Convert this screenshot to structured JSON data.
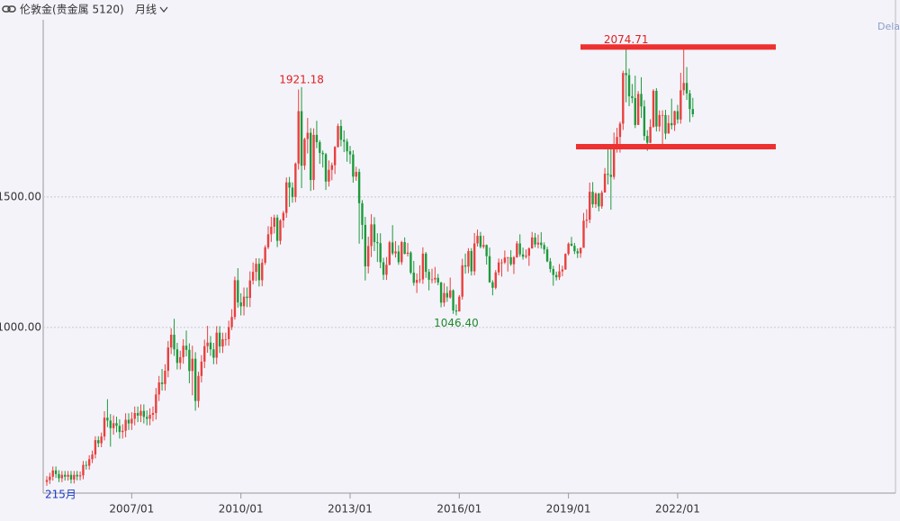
{
  "header": {
    "title": "伦敦金(贵金属 5120)",
    "period": "月线",
    "right_text": "Dela"
  },
  "chart_data": {
    "type": "candlestick",
    "footer_label": "215月",
    "up_color": "#e8403e",
    "down_color": "#1e9a3c",
    "x": [
      "2004/09",
      "2004/10",
      "2004/11",
      "2004/12",
      "2005/01",
      "2005/02",
      "2005/03",
      "2005/04",
      "2005/05",
      "2005/06",
      "2005/07",
      "2005/08",
      "2005/09",
      "2005/10",
      "2005/11",
      "2005/12",
      "2006/01",
      "2006/02",
      "2006/03",
      "2006/04",
      "2006/05",
      "2006/06",
      "2006/07",
      "2006/08",
      "2006/09",
      "2006/10",
      "2006/11",
      "2006/12",
      "2007/01",
      "2007/02",
      "2007/03",
      "2007/04",
      "2007/05",
      "2007/06",
      "2007/07",
      "2007/08",
      "2007/09",
      "2007/10",
      "2007/11",
      "2007/12",
      "2008/01",
      "2008/02",
      "2008/03",
      "2008/04",
      "2008/05",
      "2008/06",
      "2008/07",
      "2008/08",
      "2008/09",
      "2008/10",
      "2008/11",
      "2008/12",
      "2009/01",
      "2009/02",
      "2009/03",
      "2009/04",
      "2009/05",
      "2009/06",
      "2009/07",
      "2009/08",
      "2009/09",
      "2009/10",
      "2009/11",
      "2009/12",
      "2010/01",
      "2010/02",
      "2010/03",
      "2010/04",
      "2010/05",
      "2010/06",
      "2010/07",
      "2010/08",
      "2010/09",
      "2010/10",
      "2010/11",
      "2010/12",
      "2011/01",
      "2011/02",
      "2011/03",
      "2011/04",
      "2011/05",
      "2011/06",
      "2011/07",
      "2011/08",
      "2011/09",
      "2011/10",
      "2011/11",
      "2011/12",
      "2012/01",
      "2012/02",
      "2012/03",
      "2012/04",
      "2012/05",
      "2012/06",
      "2012/07",
      "2012/08",
      "2012/09",
      "2012/10",
      "2012/11",
      "2012/12",
      "2013/01",
      "2013/02",
      "2013/03",
      "2013/04",
      "2013/05",
      "2013/06",
      "2013/07",
      "2013/08",
      "2013/09",
      "2013/10",
      "2013/11",
      "2013/12",
      "2014/01",
      "2014/02",
      "2014/03",
      "2014/04",
      "2014/05",
      "2014/06",
      "2014/07",
      "2014/08",
      "2014/09",
      "2014/10",
      "2014/11",
      "2014/12",
      "2015/01",
      "2015/02",
      "2015/03",
      "2015/04",
      "2015/05",
      "2015/06",
      "2015/07",
      "2015/08",
      "2015/09",
      "2015/10",
      "2015/11",
      "2015/12",
      "2016/01",
      "2016/02",
      "2016/03",
      "2016/04",
      "2016/05",
      "2016/06",
      "2016/07",
      "2016/08",
      "2016/09",
      "2016/10",
      "2016/11",
      "2016/12",
      "2017/01",
      "2017/02",
      "2017/03",
      "2017/04",
      "2017/05",
      "2017/06",
      "2017/07",
      "2017/08",
      "2017/09",
      "2017/10",
      "2017/11",
      "2017/12",
      "2018/01",
      "2018/02",
      "2018/03",
      "2018/04",
      "2018/05",
      "2018/06",
      "2018/07",
      "2018/08",
      "2018/09",
      "2018/10",
      "2018/11",
      "2018/12",
      "2019/01",
      "2019/02",
      "2019/03",
      "2019/04",
      "2019/05",
      "2019/06",
      "2019/07",
      "2019/08",
      "2019/09",
      "2019/10",
      "2019/11",
      "2019/12",
      "2020/01",
      "2020/02",
      "2020/03",
      "2020/04",
      "2020/05",
      "2020/06",
      "2020/07",
      "2020/08",
      "2020/09",
      "2020/10",
      "2020/11",
      "2020/12",
      "2021/01",
      "2021/02",
      "2021/03",
      "2021/04",
      "2021/05",
      "2021/06",
      "2021/07",
      "2021/08",
      "2021/09",
      "2021/10",
      "2021/11",
      "2021/12",
      "2022/01",
      "2022/02",
      "2022/03",
      "2022/04",
      "2022/05",
      "2022/06"
    ],
    "open": [
      408,
      415,
      428,
      452,
      438,
      422,
      435,
      428,
      435,
      417,
      435,
      429,
      433,
      473,
      470,
      495,
      513,
      568,
      556,
      582,
      654,
      643,
      614,
      633,
      623,
      599,
      604,
      646,
      632,
      650,
      672,
      662,
      680,
      657,
      650,
      665,
      672,
      743,
      789,
      783,
      834,
      923,
      972,
      916,
      864,
      886,
      930,
      914,
      833,
      880,
      718,
      814,
      869,
      928,
      942,
      916,
      884,
      980,
      927,
      955,
      955,
      1001,
      1040,
      1181,
      1096,
      1081,
      1118,
      1113,
      1180,
      1213,
      1244,
      1181,
      1248,
      1307,
      1357,
      1386,
      1421,
      1332,
      1410,
      1439,
      1556,
      1536,
      1500,
      1628,
      1829,
      1620,
      1722,
      1746,
      1565,
      1738,
      1710,
      1669,
      1664,
      1559,
      1604,
      1622,
      1692,
      1772,
      1719,
      1712,
      1675,
      1663,
      1578,
      1596,
      1476,
      1393,
      1234,
      1312,
      1395,
      1327,
      1323,
      1250,
      1202,
      1240,
      1326,
      1284,
      1291,
      1250,
      1327,
      1282,
      1287,
      1210,
      1171,
      1182,
      1184,
      1283,
      1213,
      1183,
      1184,
      1190,
      1172,
      1095,
      1132,
      1115,
      1142,
      1065,
      1061,
      1118,
      1238,
      1233,
      1293,
      1215,
      1322,
      1351,
      1309,
      1316,
      1273,
      1173,
      1152,
      1211,
      1249,
      1249,
      1268,
      1269,
      1242,
      1269,
      1322,
      1280,
      1271,
      1275,
      1303,
      1345,
      1318,
      1325,
      1316,
      1299,
      1253,
      1224,
      1201,
      1192,
      1215,
      1222,
      1282,
      1321,
      1313,
      1292,
      1284,
      1305,
      1409,
      1413,
      1520,
      1472,
      1513,
      1464,
      1517,
      1589,
      1585,
      1577,
      1687,
      1730,
      1781,
      1975,
      1967,
      1886,
      1879,
      1776,
      1895,
      1847,
      1734,
      1708,
      1769,
      1907,
      1770,
      1814,
      1814,
      1743,
      1783,
      1775,
      1829,
      1797,
      1909,
      1937,
      1897,
      1837
    ],
    "high": [
      430,
      443,
      467,
      467,
      453,
      450,
      450,
      450,
      450,
      450,
      450,
      448,
      488,
      488,
      510,
      528,
      583,
      583,
      597,
      679,
      725,
      668,
      663,
      658,
      648,
      629,
      671,
      671,
      675,
      697,
      697,
      705,
      705,
      682,
      690,
      697,
      768,
      814,
      841,
      859,
      948,
      997,
      1033,
      941,
      911,
      955,
      988,
      939,
      930,
      905,
      830,
      894,
      953,
      1006,
      967,
      941,
      1005,
      1005,
      980,
      980,
      1026,
      1070,
      1195,
      1227,
      1131,
      1153,
      1153,
      1215,
      1249,
      1265,
      1265,
      1263,
      1315,
      1388,
      1424,
      1432,
      1432,
      1415,
      1447,
      1575,
      1577,
      1556,
      1632,
      1912,
      1921,
      1727,
      1803,
      1764,
      1763,
      1792,
      1718,
      1678,
      1669,
      1640,
      1632,
      1695,
      1781,
      1796,
      1755,
      1723,
      1696,
      1679,
      1616,
      1608,
      1488,
      1424,
      1348,
      1434,
      1423,
      1361,
      1361,
      1267,
      1270,
      1332,
      1392,
      1331,
      1315,
      1332,
      1345,
      1324,
      1292,
      1255,
      1207,
      1238,
      1307,
      1289,
      1224,
      1225,
      1232,
      1205,
      1175,
      1170,
      1157,
      1191,
      1146,
      1088,
      1124,
      1263,
      1283,
      1304,
      1304,
      1362,
      1375,
      1366,
      1352,
      1318,
      1306,
      1181,
      1220,
      1264,
      1262,
      1295,
      1270,
      1296,
      1274,
      1331,
      1357,
      1306,
      1299,
      1307,
      1366,
      1362,
      1356,
      1365,
      1326,
      1309,
      1266,
      1236,
      1214,
      1243,
      1237,
      1284,
      1326,
      1347,
      1324,
      1303,
      1306,
      1439,
      1453,
      1555,
      1557,
      1518,
      1516,
      1525,
      1611,
      1689,
      1703,
      1747,
      1765,
      1789,
      1984,
      2075,
      1992,
      1933,
      1965,
      1906,
      1959,
      1871,
      1756,
      1798,
      1913,
      1917,
      1832,
      1832,
      1834,
      1814,
      1877,
      1831,
      1853,
      1976,
      2070,
      1998,
      1910,
      1880
    ],
    "low": [
      393,
      400,
      413,
      423,
      407,
      407,
      413,
      413,
      402,
      402,
      414,
      414,
      418,
      455,
      455,
      480,
      498,
      541,
      541,
      567,
      618,
      543,
      589,
      598,
      574,
      574,
      579,
      607,
      607,
      625,
      637,
      637,
      632,
      625,
      625,
      640,
      647,
      718,
      758,
      758,
      809,
      898,
      891,
      839,
      839,
      861,
      889,
      786,
      740,
      681,
      693,
      789,
      844,
      903,
      891,
      859,
      859,
      902,
      902,
      930,
      930,
      990,
      1030,
      1076,
      1046,
      1046,
      1078,
      1078,
      1165,
      1178,
      1157,
      1158,
      1240,
      1300,
      1328,
      1360,
      1308,
      1318,
      1382,
      1420,
      1462,
      1478,
      1480,
      1605,
      1534,
      1604,
      1667,
      1523,
      1527,
      1687,
      1627,
      1613,
      1527,
      1540,
      1564,
      1588,
      1689,
      1694,
      1672,
      1635,
      1627,
      1555,
      1562,
      1321,
      1338,
      1180,
      1207,
      1270,
      1293,
      1251,
      1227,
      1182,
      1182,
      1238,
      1277,
      1268,
      1240,
      1240,
      1280,
      1272,
      1204,
      1160,
      1132,
      1170,
      1167,
      1190,
      1142,
      1169,
      1170,
      1162,
      1077,
      1080,
      1098,
      1110,
      1052,
      1046,
      1062,
      1107,
      1206,
      1208,
      1199,
      1200,
      1310,
      1303,
      1302,
      1241,
      1171,
      1123,
      1146,
      1200,
      1195,
      1243,
      1214,
      1236,
      1205,
      1267,
      1271,
      1260,
      1264,
      1236,
      1302,
      1307,
      1303,
      1302,
      1282,
      1250,
      1211,
      1160,
      1180,
      1182,
      1196,
      1221,
      1276,
      1311,
      1281,
      1266,
      1267,
      1311,
      1381,
      1400,
      1459,
      1458,
      1445,
      1455,
      1517,
      1548,
      1451,
      1567,
      1670,
      1670,
      1757,
      1863,
      1848,
      1860,
      1764,
      1776,
      1803,
      1717,
      1677,
      1706,
      1765,
      1751,
      1751,
      1688,
      1721,
      1746,
      1759,
      1753,
      1781,
      1781,
      1890,
      1872,
      1787,
      1806
    ],
    "close": [
      415,
      428,
      452,
      438,
      422,
      435,
      428,
      435,
      417,
      435,
      429,
      433,
      473,
      470,
      495,
      513,
      568,
      556,
      582,
      654,
      643,
      614,
      633,
      623,
      599,
      604,
      646,
      632,
      650,
      672,
      662,
      680,
      657,
      650,
      665,
      672,
      743,
      789,
      783,
      834,
      923,
      972,
      916,
      864,
      886,
      930,
      914,
      833,
      880,
      718,
      814,
      869,
      928,
      942,
      916,
      884,
      980,
      927,
      955,
      955,
      1001,
      1040,
      1181,
      1096,
      1081,
      1118,
      1113,
      1180,
      1213,
      1244,
      1181,
      1248,
      1307,
      1357,
      1386,
      1421,
      1332,
      1410,
      1439,
      1556,
      1536,
      1500,
      1628,
      1829,
      1620,
      1722,
      1746,
      1565,
      1738,
      1710,
      1669,
      1664,
      1559,
      1604,
      1622,
      1692,
      1772,
      1719,
      1712,
      1675,
      1663,
      1578,
      1596,
      1476,
      1393,
      1234,
      1312,
      1395,
      1327,
      1323,
      1250,
      1202,
      1240,
      1326,
      1284,
      1291,
      1250,
      1327,
      1282,
      1287,
      1210,
      1171,
      1182,
      1184,
      1283,
      1213,
      1183,
      1184,
      1190,
      1172,
      1095,
      1132,
      1115,
      1142,
      1065,
      1061,
      1118,
      1238,
      1233,
      1293,
      1215,
      1322,
      1351,
      1309,
      1316,
      1273,
      1173,
      1152,
      1211,
      1249,
      1249,
      1268,
      1269,
      1242,
      1269,
      1322,
      1280,
      1271,
      1275,
      1303,
      1345,
      1318,
      1325,
      1316,
      1299,
      1253,
      1224,
      1201,
      1192,
      1215,
      1222,
      1282,
      1321,
      1313,
      1292,
      1284,
      1305,
      1409,
      1413,
      1520,
      1472,
      1513,
      1464,
      1517,
      1589,
      1585,
      1577,
      1687,
      1730,
      1781,
      1975,
      1967,
      1886,
      1879,
      1776,
      1895,
      1847,
      1734,
      1708,
      1769,
      1907,
      1770,
      1814,
      1814,
      1743,
      1783,
      1775,
      1829,
      1797,
      1909,
      1937,
      1897,
      1837,
      1817
    ],
    "ylim": [
      365,
      2255
    ],
    "yticks": [
      {
        "value": 1000,
        "label": "1000.00"
      },
      {
        "value": 1500,
        "label": "1500.00"
      }
    ],
    "xticks": [
      "2007/01",
      "2010/01",
      "2013/01",
      "2016/01",
      "2019/01",
      "2022/01"
    ],
    "grid": true,
    "annotations": [
      {
        "x": "2011/09",
        "value": 1921.18,
        "label": "1921.18",
        "color": "#e02020"
      },
      {
        "x": "2020/08",
        "value": 2074.71,
        "label": "2074.71",
        "color": "#e02020"
      },
      {
        "x": "2015/12",
        "value": 1046.4,
        "label": "1046.40",
        "color": "#1e8a2c"
      }
    ],
    "hlines": [
      {
        "value": 2075,
        "color": "#ee3030"
      },
      {
        "value": 1693,
        "color": "#ee3030"
      }
    ]
  }
}
